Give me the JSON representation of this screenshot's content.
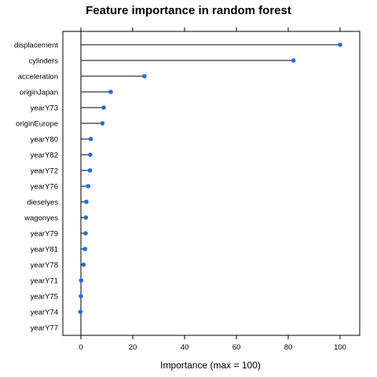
{
  "chart_data": {
    "type": "dot",
    "title": "Feature importance in random forest",
    "xlabel": "Importance (max = 100)",
    "ylabel": "",
    "xlim": [
      -8,
      107
    ],
    "xticks": [
      0,
      20,
      40,
      60,
      80,
      100
    ],
    "grid": false,
    "point_color": "#1a6fe0",
    "categories": [
      "displacement",
      "cylinders",
      "acceleration",
      "originJapan",
      "yearY73",
      "originEurope",
      "yearY80",
      "yearY82",
      "yearY72",
      "yearY76",
      "dieselyes",
      "wagonyes",
      "yearY79",
      "yearY81",
      "yearY78",
      "yearY71",
      "yearY75",
      "yearY74",
      "yearY77"
    ],
    "values": [
      100,
      82,
      24.5,
      11.5,
      8.8,
      8.3,
      3.8,
      3.6,
      3.5,
      2.8,
      2.1,
      1.9,
      1.8,
      1.6,
      1.0,
      0.1,
      0.0,
      -0.2,
      null
    ]
  }
}
